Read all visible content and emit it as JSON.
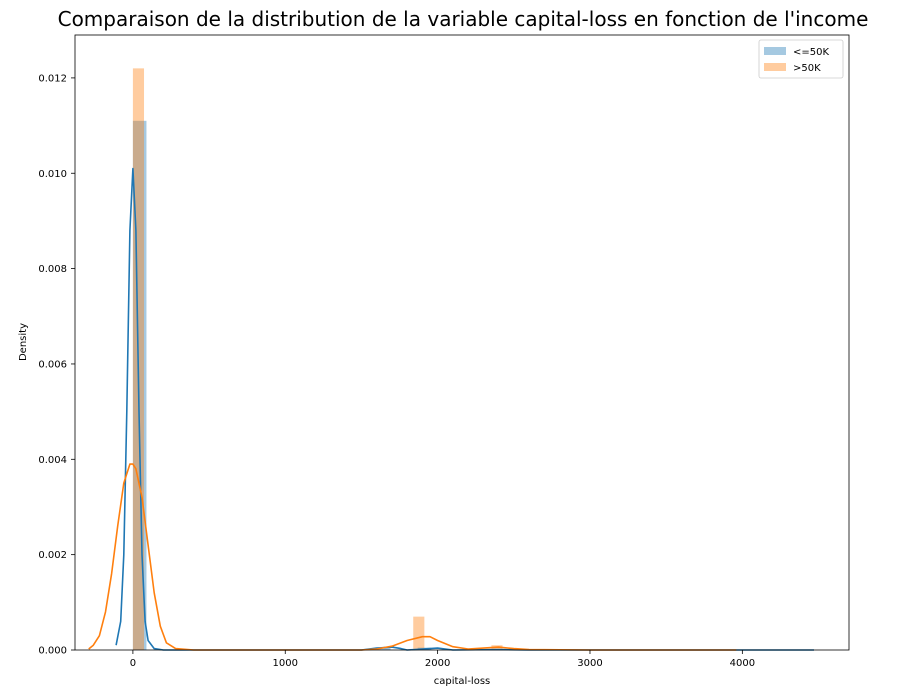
{
  "chart_data": {
    "type": "histogram+kde",
    "title": "Comparaison de la distribution de la variable capital-loss en fonction de l'income",
    "xlabel": "capital-loss",
    "ylabel": "Density",
    "xlim": [
      -380,
      4700
    ],
    "ylim": [
      0,
      0.0129
    ],
    "x_ticks": [
      0,
      1000,
      2000,
      3000,
      4000
    ],
    "x_tick_labels": [
      "0",
      "1000",
      "2000",
      "3000",
      "4000"
    ],
    "y_ticks": [
      0.0,
      0.002,
      0.004,
      0.006,
      0.008,
      0.01,
      0.012
    ],
    "y_tick_labels": [
      "0.000",
      "0.002",
      "0.004",
      "0.006",
      "0.008",
      "0.010",
      "0.012"
    ],
    "grid": false,
    "legend_position": "top-right",
    "series": [
      {
        "name": "<=50K",
        "color": "#1f77b4",
        "hist": [
          {
            "x0": 0,
            "x1": 89,
            "density": 0.0111
          },
          {
            "x0": 1602,
            "x1": 1691,
            "density": 4e-05
          },
          {
            "x0": 1869,
            "x1": 1958,
            "density": 5e-05
          }
        ],
        "kde": [
          [
            -110,
            0.0001
          ],
          [
            -80,
            0.0006
          ],
          [
            -60,
            0.002
          ],
          [
            -40,
            0.005
          ],
          [
            -20,
            0.0088
          ],
          [
            0,
            0.0101
          ],
          [
            20,
            0.0088
          ],
          [
            40,
            0.005
          ],
          [
            60,
            0.002
          ],
          [
            80,
            0.0006
          ],
          [
            100,
            0.0002
          ],
          [
            140,
            3e-05
          ],
          [
            200,
            0.0
          ],
          [
            1000,
            0.0
          ],
          [
            1500,
            0.0
          ],
          [
            1600,
            4e-05
          ],
          [
            1700,
            6e-05
          ],
          [
            1760,
            3e-05
          ],
          [
            1800,
            0.0
          ],
          [
            1950,
            3e-05
          ],
          [
            2000,
            4e-05
          ],
          [
            2100,
            0.0
          ],
          [
            2400,
            1e-05
          ],
          [
            2600,
            0.0
          ],
          [
            4470,
            0.0
          ]
        ]
      },
      {
        "name": ">50K",
        "color": "#ff7f0e",
        "hist": [
          {
            "x0": 0,
            "x1": 73,
            "density": 0.0122
          },
          {
            "x0": 1840,
            "x1": 1913,
            "density": 0.0007
          },
          {
            "x0": 2353,
            "x1": 2426,
            "density": 0.0001
          }
        ],
        "kde": [
          [
            -290,
            2e-05
          ],
          [
            -260,
            0.0001
          ],
          [
            -220,
            0.0003
          ],
          [
            -180,
            0.0008
          ],
          [
            -140,
            0.0016
          ],
          [
            -100,
            0.0026
          ],
          [
            -60,
            0.0035
          ],
          [
            -20,
            0.0039
          ],
          [
            0,
            0.0039
          ],
          [
            20,
            0.0038
          ],
          [
            60,
            0.0032
          ],
          [
            100,
            0.0022
          ],
          [
            140,
            0.0012
          ],
          [
            180,
            0.0005
          ],
          [
            220,
            0.00015
          ],
          [
            280,
            3e-05
          ],
          [
            400,
            0.0
          ],
          [
            1500,
            0.0
          ],
          [
            1600,
            2e-05
          ],
          [
            1700,
            8e-05
          ],
          [
            1800,
            0.0002
          ],
          [
            1900,
            0.00028
          ],
          [
            1950,
            0.00028
          ],
          [
            2000,
            0.0002
          ],
          [
            2100,
            7e-05
          ],
          [
            2200,
            2e-05
          ],
          [
            2300,
            4e-05
          ],
          [
            2400,
            6e-05
          ],
          [
            2500,
            3e-05
          ],
          [
            2600,
            1e-05
          ],
          [
            3000,
            0.0
          ],
          [
            3960,
            0.0
          ]
        ]
      }
    ]
  }
}
